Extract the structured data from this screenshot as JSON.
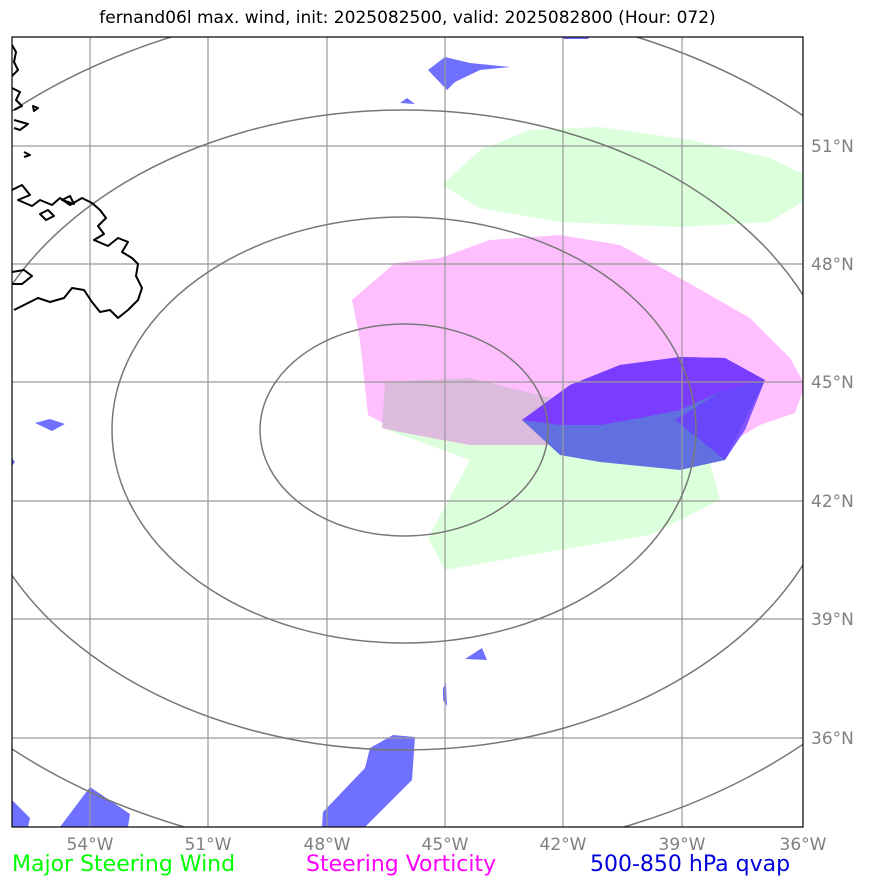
{
  "title": "fernand06l max. wind, init: 2025082500, valid: 2025082800 (Hour: 072)",
  "map": {
    "lon_labels": [
      "54°W",
      "51°W",
      "48°W",
      "45°W",
      "42°W",
      "39°W",
      "36°W"
    ],
    "lat_labels": [
      "51°N",
      "48°N",
      "45°N",
      "42°N",
      "39°N",
      "36°N"
    ]
  },
  "legend": {
    "wind": {
      "label": "Major Steering Wind",
      "color": "#00ff00"
    },
    "vorticity": {
      "label": "Steering Vorticity",
      "color": "#ff00ff"
    },
    "qvap": {
      "label": "500-850 hPa qvap",
      "color": "#0000dd"
    }
  },
  "colors": {
    "wind_fill": "#dcffdc",
    "vorticity_fill": "#ffbfff",
    "qvap_fill": "#7070ff",
    "grid": "#999999",
    "range_rings": "#777777",
    "coast": "#000000"
  },
  "icons": [
    "coastline-newfoundland",
    "range-rings"
  ]
}
